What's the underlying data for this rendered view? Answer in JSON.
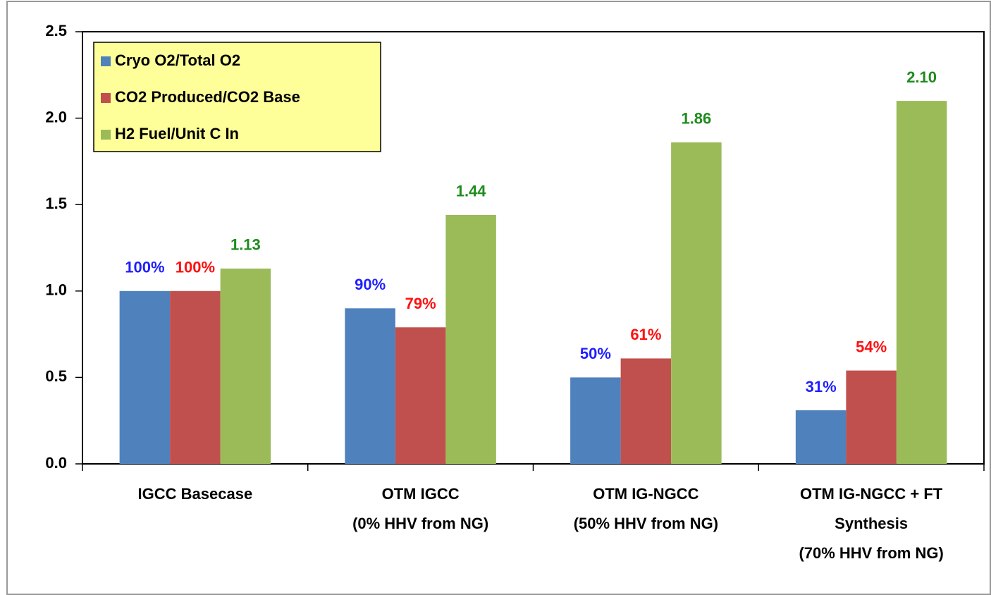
{
  "chart_data": {
    "type": "bar",
    "categories": [
      [
        "IGCC Basecase"
      ],
      [
        "OTM IGCC",
        "(0% HHV from NG)"
      ],
      [
        "OTM IG-NGCC",
        "(50% HHV from NG)"
      ],
      [
        "OTM IG-NGCC + FT",
        "Synthesis",
        "(70% HHV from NG)"
      ]
    ],
    "series": [
      {
        "name": "Cryo O2/Total O2",
        "color": "#4f81bd",
        "label_color": "#1f1fff",
        "values": [
          1.0,
          0.9,
          0.5,
          0.31
        ],
        "value_labels": [
          "100%",
          "90%",
          "50%",
          "31%"
        ]
      },
      {
        "name": "CO2 Produced/CO2 Base",
        "color": "#c0504d",
        "label_color": "#ff1010",
        "values": [
          1.0,
          0.79,
          0.61,
          0.54
        ],
        "value_labels": [
          "100%",
          "79%",
          "61%",
          "54%"
        ]
      },
      {
        "name": "H2 Fuel/Unit C In",
        "color": "#9bbb59",
        "label_color": "#1e8c1e",
        "values": [
          1.13,
          1.44,
          1.86,
          2.1
        ],
        "value_labels": [
          "1.13",
          "1.44",
          "1.86",
          "2.10"
        ]
      }
    ],
    "ylim": [
      0,
      2.5
    ],
    "yticks": [
      {
        "value": 0,
        "label": "0.0"
      },
      {
        "value": 0.5,
        "label": "0.5"
      },
      {
        "value": 1,
        "label": "1.0"
      },
      {
        "value": 1.5,
        "label": "1.5"
      },
      {
        "value": 2,
        "label": "2.0"
      },
      {
        "value": 2.5,
        "label": "2.5"
      }
    ],
    "grid": false,
    "legend": "top-left"
  }
}
